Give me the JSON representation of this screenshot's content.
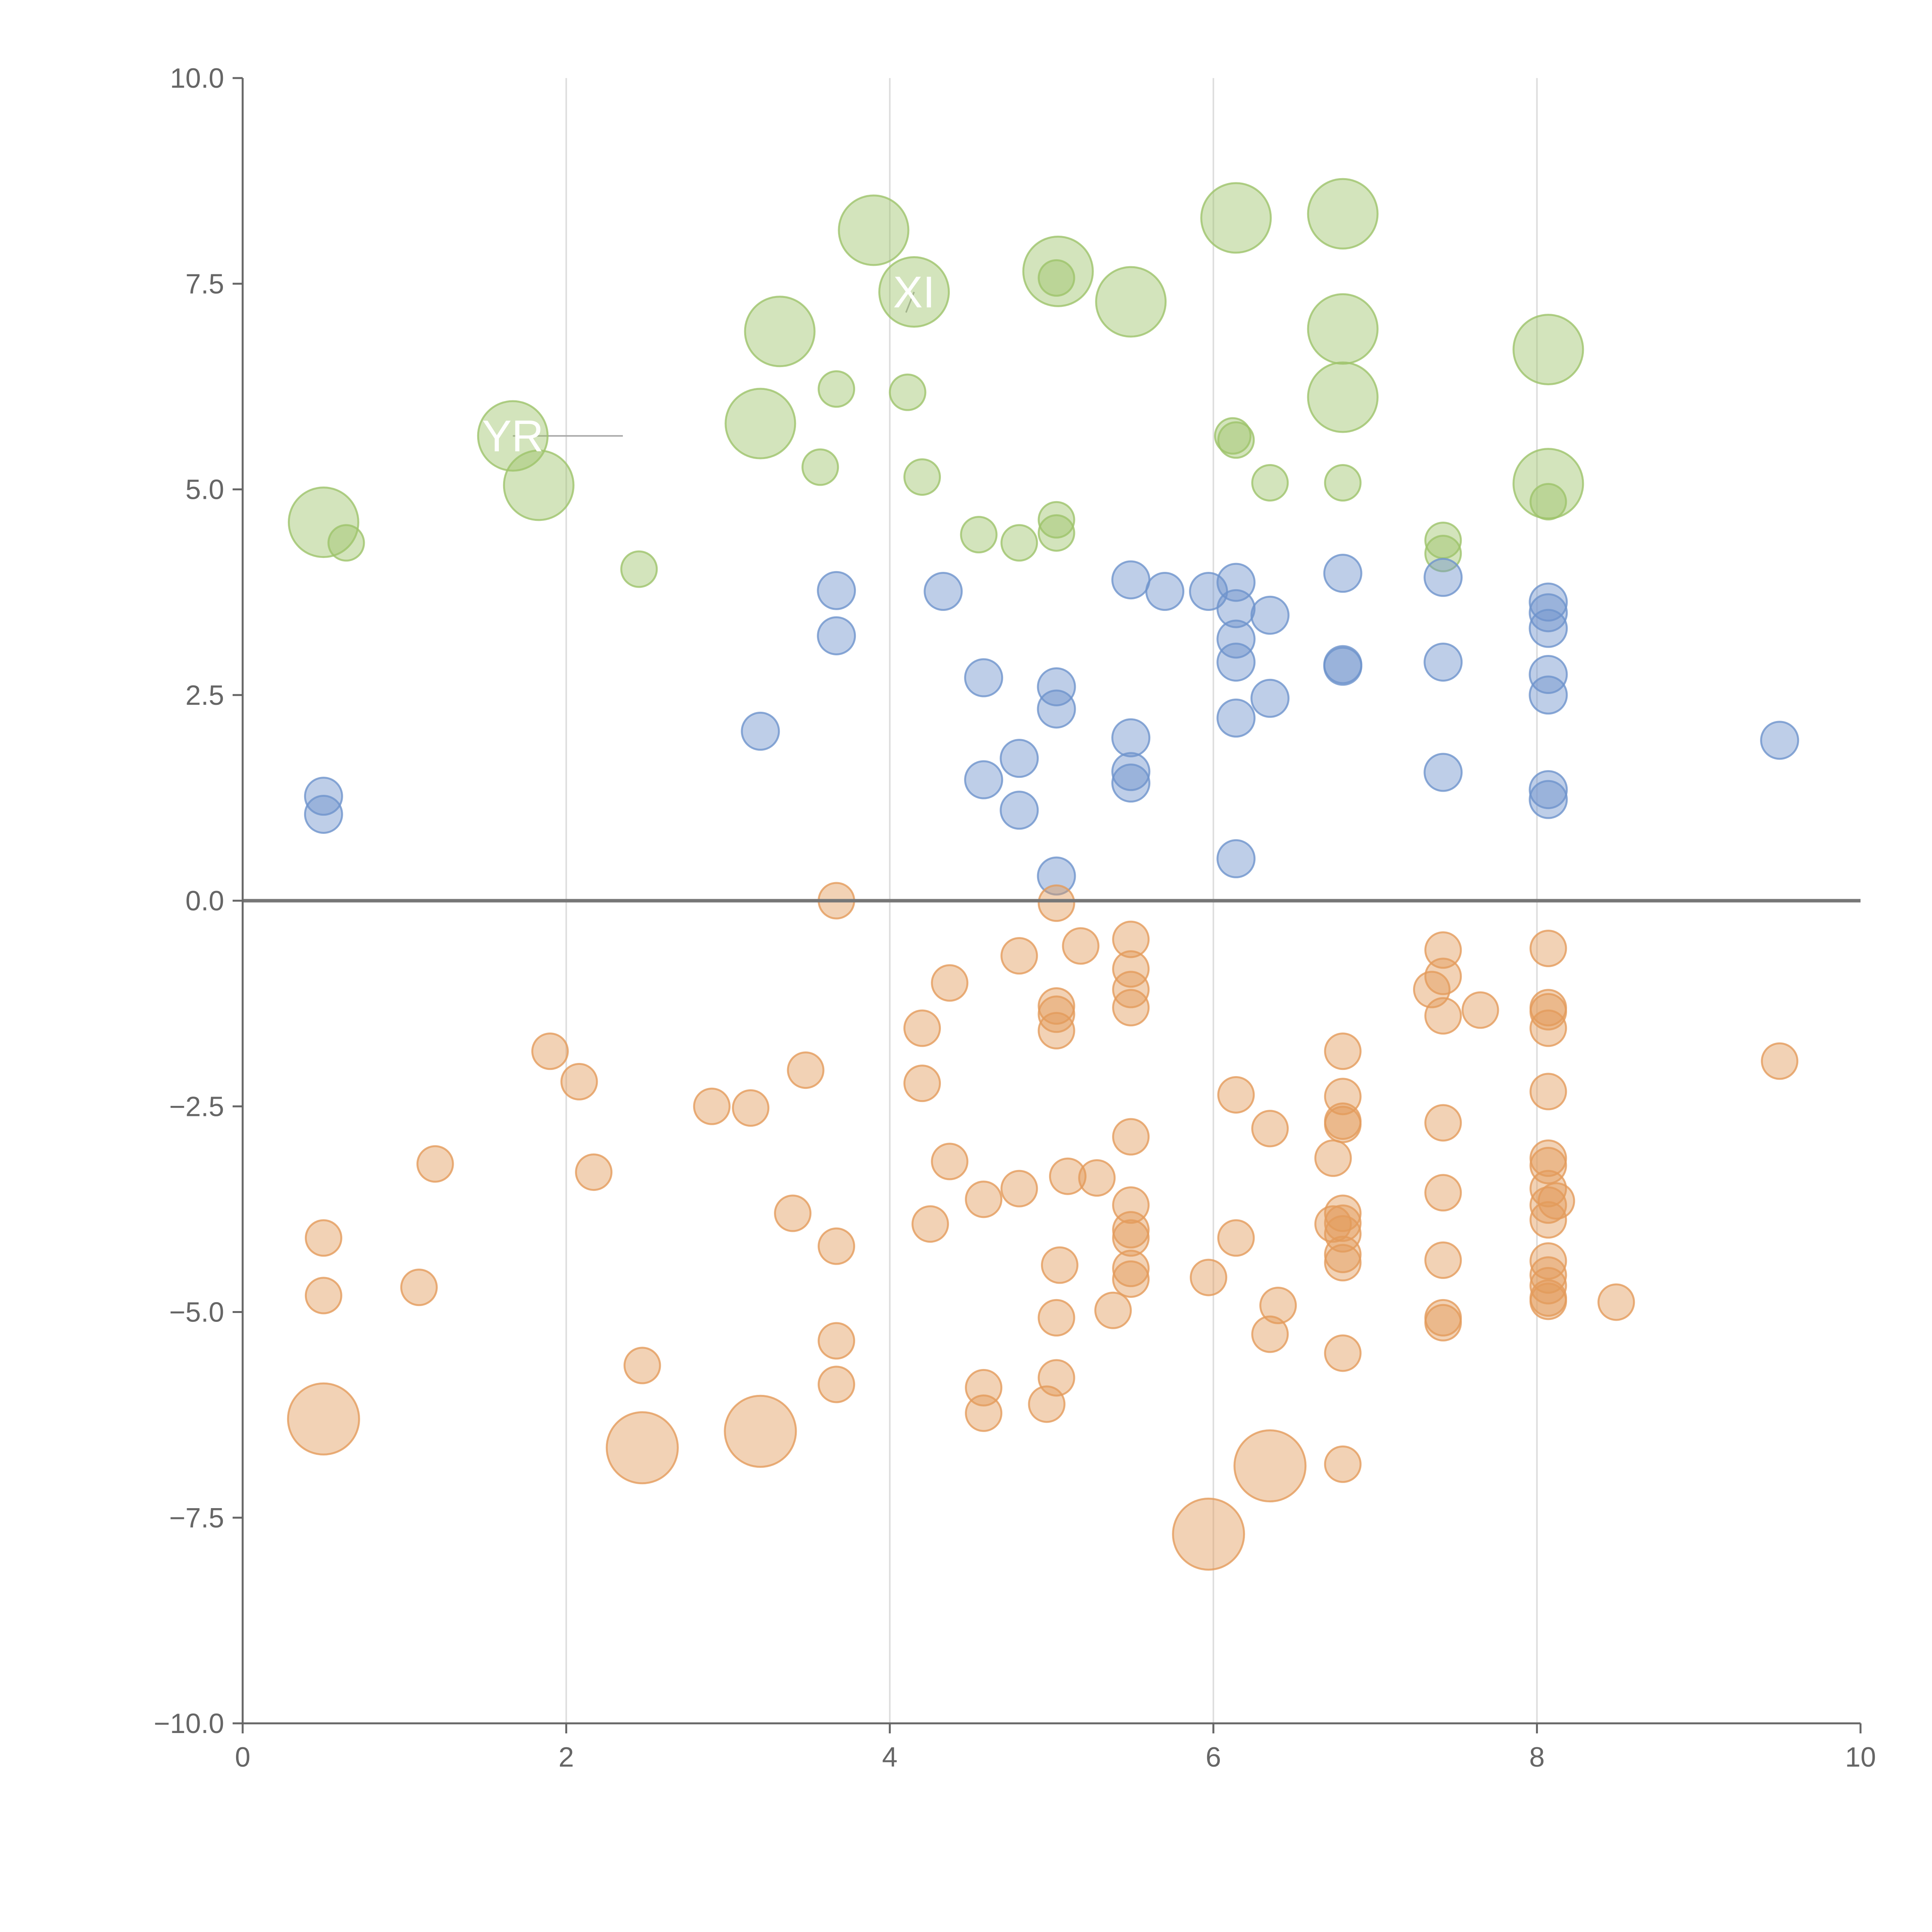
{
  "chart_data": {
    "type": "scatter",
    "title": "",
    "xlabel": "",
    "ylabel": "",
    "xlim": [
      0,
      10
    ],
    "ylim": [
      -10,
      10
    ],
    "x_ticks": [
      0,
      2,
      4,
      6,
      8,
      10
    ],
    "x_tick_labels": [
      "0",
      "2",
      "4",
      "6",
      "8",
      "10"
    ],
    "y_ticks": [
      -10,
      -7.5,
      -5,
      -2.5,
      0,
      2.5,
      5,
      7.5,
      10
    ],
    "y_tick_labels": [
      "−10.0",
      "−7.5",
      "−5.0",
      "−2.5",
      "0.0",
      "2.5",
      "5.0",
      "7.5",
      "10.0"
    ],
    "vertical_gridlines_at": [
      2,
      4,
      6,
      8
    ],
    "zero_line": true,
    "colors": {
      "green": "#9dc36a",
      "blue": "#6e93cc",
      "orange": "#e39b5b",
      "axis": "#666666",
      "grid": "#dddddd",
      "zero_line": "#777777",
      "leader": "#aaaaaa",
      "label_text": "#ffffff"
    },
    "series": [
      {
        "color": "green",
        "points": [
          [
            0.5,
            4.6,
            "L"
          ],
          [
            0.64,
            4.35,
            "S"
          ],
          [
            1.67,
            5.65,
            "L"
          ],
          [
            1.83,
            5.05,
            "L"
          ],
          [
            2.45,
            4.03,
            "S"
          ],
          [
            3.2,
            5.8,
            "L"
          ],
          [
            3.32,
            6.92,
            "L"
          ],
          [
            3.57,
            5.27,
            "S"
          ],
          [
            3.67,
            6.22,
            "S"
          ],
          [
            3.9,
            8.15,
            "L"
          ],
          [
            4.11,
            6.18,
            "S"
          ],
          [
            4.15,
            7.4,
            "L"
          ],
          [
            4.2,
            5.15,
            "S"
          ],
          [
            4.55,
            4.45,
            "S"
          ],
          [
            4.8,
            4.35,
            "S"
          ],
          [
            5.03,
            4.63,
            "S"
          ],
          [
            5.03,
            4.47,
            "S"
          ],
          [
            5.03,
            7.57,
            "S"
          ],
          [
            5.04,
            7.65,
            "L"
          ],
          [
            5.49,
            7.28,
            "L"
          ],
          [
            6.12,
            5.65,
            "S"
          ],
          [
            6.14,
            5.6,
            "S"
          ],
          [
            6.14,
            8.3,
            "L"
          ],
          [
            6.35,
            5.08,
            "S"
          ],
          [
            6.8,
            8.35,
            "L"
          ],
          [
            6.8,
            6.95,
            "L"
          ],
          [
            6.8,
            6.12,
            "L"
          ],
          [
            6.8,
            5.08,
            "S"
          ],
          [
            7.42,
            4.38,
            "S"
          ],
          [
            7.42,
            4.22,
            "S"
          ],
          [
            8.07,
            6.7,
            "L"
          ],
          [
            8.07,
            5.07,
            "L"
          ],
          [
            8.07,
            4.85,
            "S"
          ]
        ]
      },
      {
        "color": "blue",
        "points": [
          [
            0.5,
            1.27
          ],
          [
            0.5,
            1.05
          ],
          [
            3.2,
            2.06
          ],
          [
            3.67,
            3.77
          ],
          [
            3.67,
            3.22
          ],
          [
            4.33,
            3.76
          ],
          [
            4.58,
            2.71
          ],
          [
            4.58,
            1.47
          ],
          [
            4.8,
            1.73
          ],
          [
            4.8,
            1.1
          ],
          [
            5.03,
            2.6
          ],
          [
            5.03,
            2.33
          ],
          [
            5.03,
            0.3
          ],
          [
            5.49,
            3.9
          ],
          [
            5.49,
            1.98
          ],
          [
            5.49,
            1.57
          ],
          [
            5.49,
            1.43
          ],
          [
            5.7,
            3.76
          ],
          [
            5.97,
            3.76
          ],
          [
            6.14,
            3.87
          ],
          [
            6.14,
            3.55
          ],
          [
            6.14,
            3.18
          ],
          [
            6.14,
            2.9
          ],
          [
            6.14,
            2.22
          ],
          [
            6.14,
            0.51
          ],
          [
            6.35,
            3.47
          ],
          [
            6.35,
            2.46
          ],
          [
            6.8,
            3.98
          ],
          [
            6.8,
            2.87
          ],
          [
            6.8,
            2.85
          ],
          [
            7.42,
            3.93
          ],
          [
            7.42,
            2.9
          ],
          [
            7.42,
            1.56
          ],
          [
            8.07,
            3.63
          ],
          [
            8.07,
            3.5
          ],
          [
            8.07,
            3.31
          ],
          [
            8.07,
            2.75
          ],
          [
            8.07,
            2.5
          ],
          [
            8.07,
            1.35
          ],
          [
            8.07,
            1.23
          ],
          [
            9.5,
            1.95
          ]
        ]
      },
      {
        "color": "orange",
        "points": [
          [
            0.5,
            -4.1,
            "S"
          ],
          [
            0.5,
            -4.8,
            "S"
          ],
          [
            0.5,
            -6.3,
            "L"
          ],
          [
            1.09,
            -4.7,
            "S"
          ],
          [
            1.19,
            -3.2,
            "S"
          ],
          [
            1.9,
            -1.83,
            "S"
          ],
          [
            2.08,
            -2.2,
            "S"
          ],
          [
            2.17,
            -3.3,
            "S"
          ],
          [
            2.47,
            -5.65,
            "S"
          ],
          [
            2.47,
            -6.65,
            "L"
          ],
          [
            2.9,
            -2.5,
            "S"
          ],
          [
            3.14,
            -2.52,
            "S"
          ],
          [
            3.2,
            -6.45,
            "L"
          ],
          [
            3.4,
            -3.8,
            "S"
          ],
          [
            3.48,
            -2.06,
            "S"
          ],
          [
            3.67,
            0.0,
            "S"
          ],
          [
            3.67,
            -4.2,
            "S"
          ],
          [
            3.67,
            -5.35,
            "S"
          ],
          [
            3.67,
            -5.88,
            "S"
          ],
          [
            4.2,
            -1.55,
            "S"
          ],
          [
            4.2,
            -2.22,
            "S"
          ],
          [
            4.25,
            -3.93,
            "S"
          ],
          [
            4.37,
            -1.0,
            "S"
          ],
          [
            4.37,
            -3.17,
            "S"
          ],
          [
            4.58,
            -3.63,
            "S"
          ],
          [
            4.58,
            -5.92,
            "S"
          ],
          [
            4.58,
            -6.23,
            "S"
          ],
          [
            4.8,
            -0.67,
            "S"
          ],
          [
            4.8,
            -3.5,
            "S"
          ],
          [
            4.97,
            -6.12,
            "S"
          ],
          [
            5.03,
            -0.03,
            "S"
          ],
          [
            5.03,
            -1.28,
            "S"
          ],
          [
            5.03,
            -1.38,
            "S"
          ],
          [
            5.03,
            -1.58,
            "S"
          ],
          [
            5.03,
            -5.07,
            "S"
          ],
          [
            5.03,
            -5.8,
            "S"
          ],
          [
            5.05,
            -4.43,
            "S"
          ],
          [
            5.1,
            -3.35,
            "S"
          ],
          [
            5.18,
            -0.55,
            "S"
          ],
          [
            5.28,
            -3.37,
            "S"
          ],
          [
            5.38,
            -4.98,
            "S"
          ],
          [
            5.49,
            -0.47,
            "S"
          ],
          [
            5.49,
            -0.83,
            "S"
          ],
          [
            5.49,
            -1.08,
            "S"
          ],
          [
            5.49,
            -1.3,
            "S"
          ],
          [
            5.49,
            -2.87,
            "S"
          ],
          [
            5.49,
            -3.7,
            "S"
          ],
          [
            5.49,
            -4.0,
            "S"
          ],
          [
            5.49,
            -4.1,
            "S"
          ],
          [
            5.49,
            -4.47,
            "S"
          ],
          [
            5.49,
            -4.6,
            "S"
          ],
          [
            5.97,
            -4.58,
            "S"
          ],
          [
            5.97,
            -7.7,
            "L"
          ],
          [
            6.14,
            -2.36,
            "S"
          ],
          [
            6.14,
            -4.1,
            "S"
          ],
          [
            6.35,
            -2.77,
            "S"
          ],
          [
            6.35,
            -5.27,
            "S"
          ],
          [
            6.35,
            -6.87,
            "L"
          ],
          [
            6.4,
            -4.92,
            "S"
          ],
          [
            6.74,
            -3.13,
            "S"
          ],
          [
            6.74,
            -3.93,
            "S"
          ],
          [
            6.8,
            -1.83,
            "S"
          ],
          [
            6.8,
            -2.38,
            "S"
          ],
          [
            6.8,
            -2.68,
            "S"
          ],
          [
            6.8,
            -2.72,
            "S"
          ],
          [
            6.8,
            -3.8,
            "S"
          ],
          [
            6.8,
            -3.92,
            "S"
          ],
          [
            6.8,
            -4.05,
            "S"
          ],
          [
            6.8,
            -4.3,
            "S"
          ],
          [
            6.8,
            -4.4,
            "S"
          ],
          [
            6.8,
            -5.5,
            "S"
          ],
          [
            6.8,
            -6.85,
            "S"
          ],
          [
            7.35,
            -1.08,
            "S"
          ],
          [
            7.42,
            -0.6,
            "S"
          ],
          [
            7.42,
            -0.92,
            "S"
          ],
          [
            7.42,
            -1.4,
            "S"
          ],
          [
            7.42,
            -2.7,
            "S"
          ],
          [
            7.42,
            -3.55,
            "S"
          ],
          [
            7.42,
            -4.37,
            "S"
          ],
          [
            7.42,
            -5.07,
            "S"
          ],
          [
            7.42,
            -5.13,
            "S"
          ],
          [
            7.65,
            -1.33,
            "S"
          ],
          [
            8.07,
            -0.58,
            "S"
          ],
          [
            8.07,
            -1.3,
            "S"
          ],
          [
            8.07,
            -1.35,
            "S"
          ],
          [
            8.07,
            -1.55,
            "S"
          ],
          [
            8.07,
            -2.32,
            "S"
          ],
          [
            8.07,
            -3.13,
            "S"
          ],
          [
            8.07,
            -3.22,
            "S"
          ],
          [
            8.07,
            -3.5,
            "S"
          ],
          [
            8.07,
            -3.7,
            "S"
          ],
          [
            8.07,
            -3.88,
            "S"
          ],
          [
            8.07,
            -4.38,
            "S"
          ],
          [
            8.07,
            -4.55,
            "S"
          ],
          [
            8.07,
            -4.68,
            "S"
          ],
          [
            8.07,
            -4.83,
            "S"
          ],
          [
            8.07,
            -4.87,
            "S"
          ],
          [
            8.12,
            -3.65,
            "S"
          ],
          [
            8.49,
            -4.88,
            "S"
          ],
          [
            9.5,
            -1.95,
            "S"
          ]
        ]
      }
    ],
    "annotations": [
      {
        "text": "YR",
        "x": 1.67,
        "y": 5.65,
        "lx": 2.35,
        "ly": 5.65
      },
      {
        "text": "XI",
        "x": 4.15,
        "y": 7.4,
        "lx": 4.1,
        "ly": 7.15
      }
    ]
  }
}
